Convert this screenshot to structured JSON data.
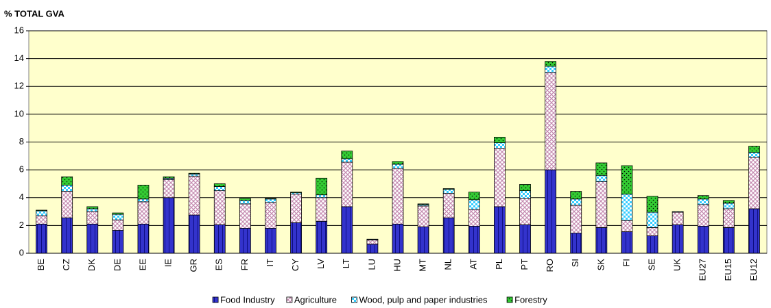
{
  "chart_data": {
    "type": "stacked-bar",
    "title": "% TOTAL GVA",
    "categories": [
      "BE",
      "CZ",
      "DK",
      "DE",
      "EE",
      "IE",
      "GR",
      "ES",
      "FR",
      "IT",
      "CY",
      "LV",
      "LT",
      "LU",
      "HU",
      "MT",
      "NL",
      "AT",
      "PL",
      "PT",
      "RO",
      "SI",
      "SK",
      "FI",
      "SE",
      "UK",
      "EU27",
      "EU15",
      "EU12"
    ],
    "series": [
      {
        "name": "Food Industry",
        "color": "#3333cc",
        "values": [
          2.1,
          2.55,
          2.1,
          1.65,
          2.1,
          4.0,
          2.75,
          2.05,
          1.8,
          1.8,
          2.2,
          2.3,
          3.35,
          0.65,
          2.1,
          1.9,
          2.55,
          1.95,
          3.35,
          2.05,
          6.0,
          1.45,
          1.85,
          1.55,
          1.25,
          2.05,
          1.95,
          1.85,
          3.2
        ]
      },
      {
        "name": "Agriculture",
        "color": "#c48ab0",
        "values": [
          0.6,
          1.9,
          0.9,
          0.75,
          1.6,
          1.3,
          2.8,
          2.45,
          1.75,
          1.85,
          2.05,
          1.7,
          3.2,
          0.3,
          4.0,
          1.5,
          1.75,
          1.2,
          4.2,
          1.9,
          7.0,
          2.0,
          3.3,
          0.8,
          0.6,
          0.9,
          1.55,
          1.35,
          3.7
        ]
      },
      {
        "name": "Wood, pulp and paper industries",
        "color": "#33ccff",
        "values": [
          0.35,
          0.45,
          0.2,
          0.4,
          0.2,
          0.1,
          0.15,
          0.3,
          0.25,
          0.25,
          0.1,
          0.2,
          0.25,
          0.05,
          0.3,
          0.1,
          0.3,
          0.7,
          0.4,
          0.55,
          0.45,
          0.45,
          0.45,
          1.9,
          1.1,
          0.05,
          0.4,
          0.4,
          0.35
        ]
      },
      {
        "name": "Forestry",
        "color": "#33cc33",
        "values": [
          0.05,
          0.6,
          0.15,
          0.1,
          1.0,
          0.1,
          0.05,
          0.2,
          0.15,
          0.05,
          0.05,
          1.2,
          0.55,
          0.02,
          0.2,
          0.05,
          0.05,
          0.55,
          0.4,
          0.45,
          0.35,
          0.55,
          0.9,
          2.05,
          1.15,
          0,
          0.25,
          0.2,
          0.45
        ]
      }
    ],
    "ylim": [
      0,
      16
    ],
    "yticks": [
      0,
      2,
      4,
      6,
      8,
      10,
      12,
      14,
      16
    ],
    "plot_background": "#ffffcc",
    "legend": "bottom"
  }
}
